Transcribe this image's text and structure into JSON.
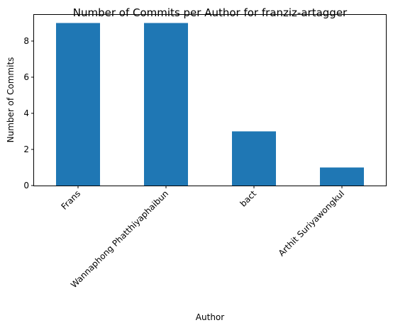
{
  "chart_data": {
    "type": "bar",
    "title": "Number of Commits per Author for franziz-artagger",
    "xlabel": "Author",
    "ylabel": "Number of Commits",
    "categories": [
      "Frans",
      "Wannaphong Phatthiyaphaibun",
      "bact",
      "Arthit Suriyawongkul"
    ],
    "values": [
      9,
      9,
      3,
      1
    ],
    "ylim": [
      0,
      9.45
    ],
    "yticks": [
      0,
      2,
      4,
      6,
      8
    ],
    "bar_color": "#1f77b4",
    "grid": false,
    "legend": false
  }
}
